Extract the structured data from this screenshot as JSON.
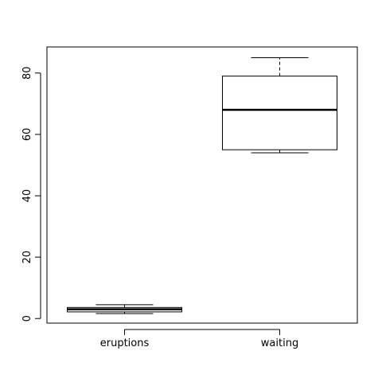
{
  "chart_data": {
    "type": "boxplot",
    "title": "",
    "xlabel": "",
    "ylabel": "",
    "categories": [
      "eruptions",
      "waiting"
    ],
    "boxes": [
      {
        "category": "eruptions",
        "min": 1.6,
        "q1": 2.16,
        "median": 3.0,
        "q3": 3.6,
        "max": 4.5
      },
      {
        "category": "waiting",
        "min": 54,
        "q1": 55,
        "median": 68,
        "q3": 79,
        "max": 85
      }
    ],
    "ylim": [
      -1.5,
      88.5
    ],
    "yticks": [
      0,
      20,
      40,
      60,
      80
    ],
    "grid": false,
    "legend": "none"
  }
}
